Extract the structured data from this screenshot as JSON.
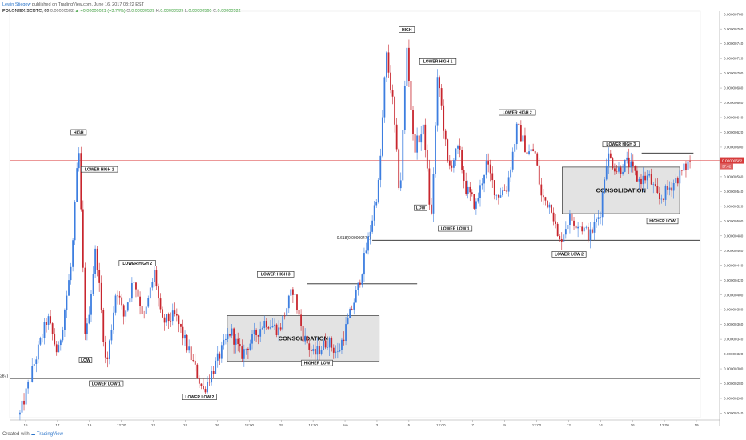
{
  "header": {
    "author": "Lewin Stiegow",
    "published": "published on TradingView.com, June 16, 2017 08:22 EST",
    "symbol": "POLONIEX:SCBTC, 60",
    "last": "0.00000582",
    "change": "+0.00000021 (+3.74%)",
    "o": "0.00000589",
    "h": "0.00000589",
    "l": "0.00000560",
    "c": "0.00000582"
  },
  "footer": {
    "created_with": "Created with",
    "brand": "TradingView"
  },
  "price_tags": {
    "last": "0.00000582",
    "countdown": "37:42"
  },
  "colors": {
    "bull": "#3d7ee0",
    "bear": "#c8262e",
    "last_line": "#e05a5a",
    "zone_fill": "#d9d9d9"
  },
  "chart_data": {
    "type": "candlestick",
    "y_axis": {
      "ylim": [
        2.34e-06,
        7.84e-06
      ],
      "ticks": [
        "0.00000780",
        "0.00000760",
        "0.00000740",
        "0.00000720",
        "0.00000700",
        "0.00000680",
        "0.00000660",
        "0.00000640",
        "0.00000620",
        "0.00000600",
        "0.00000580",
        "0.00000560",
        "0.00000540",
        "0.00000520",
        "0.00000500",
        "0.00000480",
        "0.00000460",
        "0.00000440",
        "0.00000420",
        "0.00000400",
        "0.00000380",
        "0.00000360",
        "0.00000340",
        "0.00000320",
        "0.00000300",
        "0.00000280",
        "0.00000260",
        "0.00000240"
      ],
      "position": "right"
    },
    "x_axis": {
      "ticks": [
        "15",
        "17",
        "19",
        "12:00",
        "22",
        "24",
        "26",
        "12:00",
        "29",
        "12:00",
        "Jun",
        "3",
        "5",
        "12:00",
        "7",
        "9",
        "12:00",
        "12",
        "14",
        "16",
        "12:00",
        "19"
      ]
    },
    "series": [
      {
        "x": 3,
        "y": 2.38e-06
      },
      {
        "x": 7,
        "y": 3.05e-06
      },
      {
        "x": 11,
        "y": 3.7e-06
      },
      {
        "x": 14,
        "y": 3.18e-06
      },
      {
        "x": 18,
        "y": 4.45e-06
      },
      {
        "x": 20,
        "y": 6.03e-06
      },
      {
        "x": 22,
        "y": 3.35e-06
      },
      {
        "x": 25,
        "y": 4.65e-06
      },
      {
        "x": 28,
        "y": 3e-06
      },
      {
        "x": 31,
        "y": 4.12e-06
      },
      {
        "x": 33,
        "y": 3.7e-06
      },
      {
        "x": 36,
        "y": 4.22e-06
      },
      {
        "x": 39,
        "y": 3.68e-06
      },
      {
        "x": 42,
        "y": 4.32e-06
      },
      {
        "x": 44,
        "y": 3.62e-06
      },
      {
        "x": 48,
        "y": 3.72e-06
      },
      {
        "x": 52,
        "y": 3.22e-06
      },
      {
        "x": 56,
        "y": 2.7e-06
      },
      {
        "x": 60,
        "y": 3.1e-06
      },
      {
        "x": 64,
        "y": 3.52e-06
      },
      {
        "x": 67,
        "y": 3.18e-06
      },
      {
        "x": 71,
        "y": 3.45e-06
      },
      {
        "x": 74,
        "y": 3.65e-06
      },
      {
        "x": 78,
        "y": 3.52e-06
      },
      {
        "x": 82,
        "y": 4.08e-06
      },
      {
        "x": 85,
        "y": 3.45e-06
      },
      {
        "x": 88,
        "y": 3.18e-06
      },
      {
        "x": 92,
        "y": 3.38e-06
      },
      {
        "x": 95,
        "y": 3.2e-06
      },
      {
        "x": 98,
        "y": 3.65e-06
      },
      {
        "x": 101,
        "y": 4.12e-06
      },
      {
        "x": 104,
        "y": 4.78e-06
      },
      {
        "x": 107,
        "y": 5.55e-06
      },
      {
        "x": 109,
        "y": 7.28e-06
      },
      {
        "x": 111,
        "y": 6.58e-06
      },
      {
        "x": 113,
        "y": 5.3e-06
      },
      {
        "x": 115,
        "y": 7.38e-06
      },
      {
        "x": 117,
        "y": 5.98e-06
      },
      {
        "x": 120,
        "y": 6.25e-06
      },
      {
        "x": 122,
        "y": 4.95e-06
      },
      {
        "x": 124,
        "y": 7e-06
      },
      {
        "x": 127,
        "y": 5.7e-06
      },
      {
        "x": 130,
        "y": 5.98e-06
      },
      {
        "x": 132,
        "y": 5.45e-06
      },
      {
        "x": 135,
        "y": 5.2e-06
      },
      {
        "x": 138,
        "y": 5.78e-06
      },
      {
        "x": 141,
        "y": 5.35e-06
      },
      {
        "x": 144,
        "y": 5.45e-06
      },
      {
        "x": 147,
        "y": 6.28e-06
      },
      {
        "x": 150,
        "y": 5.92e-06
      },
      {
        "x": 152,
        "y": 5.96e-06
      },
      {
        "x": 154,
        "y": 5.32e-06
      },
      {
        "x": 157,
        "y": 5.2e-06
      },
      {
        "x": 159,
        "y": 4.68e-06
      },
      {
        "x": 162,
        "y": 5.05e-06
      },
      {
        "x": 165,
        "y": 4.95e-06
      },
      {
        "x": 168,
        "y": 4.8e-06
      },
      {
        "x": 171,
        "y": 5.12e-06
      },
      {
        "x": 173,
        "y": 5.9e-06
      },
      {
        "x": 176,
        "y": 5.68e-06
      },
      {
        "x": 179,
        "y": 5.8e-06
      },
      {
        "x": 182,
        "y": 5.55e-06
      },
      {
        "x": 185,
        "y": 5.6e-06
      },
      {
        "x": 188,
        "y": 5.28e-06
      },
      {
        "x": 191,
        "y": 5.45e-06
      },
      {
        "x": 194,
        "y": 5.62e-06
      },
      {
        "x": 197,
        "y": 5.82e-06
      }
    ],
    "annotations": [
      {
        "text": "HIGH",
        "x": 20,
        "y": 6.2e-06
      },
      {
        "text": "LOWER HIGH 1",
        "x": 26,
        "y": 5.7e-06
      },
      {
        "text": "LOW",
        "x": 22,
        "y": 3.12e-06
      },
      {
        "text": "LOWER LOW 1",
        "x": 28,
        "y": 2.8e-06
      },
      {
        "text": "LOWER HIGH 2",
        "x": 37,
        "y": 4.43e-06
      },
      {
        "text": "LOWER LOW 2",
        "x": 55,
        "y": 2.62e-06
      },
      {
        "text": "LOWER HIGH 3",
        "x": 77,
        "y": 4.28e-06
      },
      {
        "text": "HIGHER LOW",
        "x": 89,
        "y": 3.08e-06
      },
      {
        "text": "HIGH",
        "x": 115,
        "y": 7.59e-06
      },
      {
        "text": "LOWER HIGH 1",
        "x": 124,
        "y": 7.16e-06
      },
      {
        "text": "LOW",
        "x": 119,
        "y": 5.18e-06
      },
      {
        "text": "LOWER LOW 1",
        "x": 129,
        "y": 4.9e-06
      },
      {
        "text": "LOWER HIGH 2",
        "x": 147,
        "y": 6.47e-06
      },
      {
        "text": "LOWER LOW 2",
        "x": 162,
        "y": 4.55e-06
      },
      {
        "text": "LOWER HIGH 3",
        "x": 177,
        "y": 6.04e-06
      },
      {
        "text": "HIGHER LOW",
        "x": 189,
        "y": 5e-06
      }
    ],
    "zones": [
      {
        "label": "CONSOLIDATION",
        "x0": 63,
        "x1": 107,
        "y0": 3.1e-06,
        "y1": 3.72e-06
      },
      {
        "label": "CONSOLIDATION",
        "x0": 160,
        "x1": 194,
        "y0": 5.1e-06,
        "y1": 5.73e-06
      }
    ],
    "levels": [
      {
        "label": "0.618(0.00000287)",
        "y": 2.87e-06,
        "x0": 0,
        "x1": 200
      },
      {
        "label": "0.618(0.00000474)",
        "y": 4.74e-06,
        "x0": 105,
        "x1": 200
      },
      {
        "label": "",
        "y": 4.15e-06,
        "x0": 86,
        "x1": 118
      },
      {
        "label": "",
        "y": 5.92e-06,
        "x0": 183,
        "x1": 198
      }
    ]
  }
}
